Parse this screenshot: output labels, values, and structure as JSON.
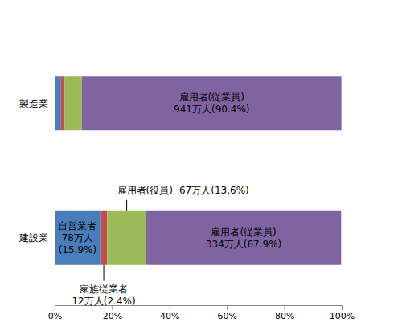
{
  "chart_data": {
    "type": "bar",
    "orientation": "horizontal",
    "stacked": true,
    "data_labels": true,
    "grid": false,
    "categories": [
      "製造業",
      "建設業"
    ],
    "xlim": [
      0,
      100
    ],
    "xticks": [
      {
        "value": 0,
        "label": "0%"
      },
      {
        "value": 20,
        "label": "20%"
      },
      {
        "value": 40,
        "label": "40%"
      },
      {
        "value": 60,
        "label": "60%"
      },
      {
        "value": 80,
        "label": "80%"
      },
      {
        "value": 100,
        "label": "100%"
      }
    ],
    "series": [
      {
        "name": "自営業者",
        "color": "#4a7ebb",
        "values": [
          2.2,
          15.9
        ],
        "value_labels": [
          null,
          "78万人\n(15.9%)"
        ]
      },
      {
        "name": "家族従業者",
        "color": "#c0504d",
        "values": [
          1.3,
          2.4
        ],
        "value_labels": [
          null,
          "12万人(2.4%)"
        ]
      },
      {
        "name": "雇用者(役員)",
        "color": "#9bbb59",
        "values": [
          6,
          13.6
        ],
        "value_labels": [
          null,
          "67万人(13.6%)"
        ]
      },
      {
        "name": "雇用者(従業員)",
        "color": "#8064a2",
        "values": [
          90.4,
          67.9
        ],
        "value_labels": [
          "941万人(90.4%)",
          "334万人(67.9%)"
        ]
      }
    ]
  }
}
